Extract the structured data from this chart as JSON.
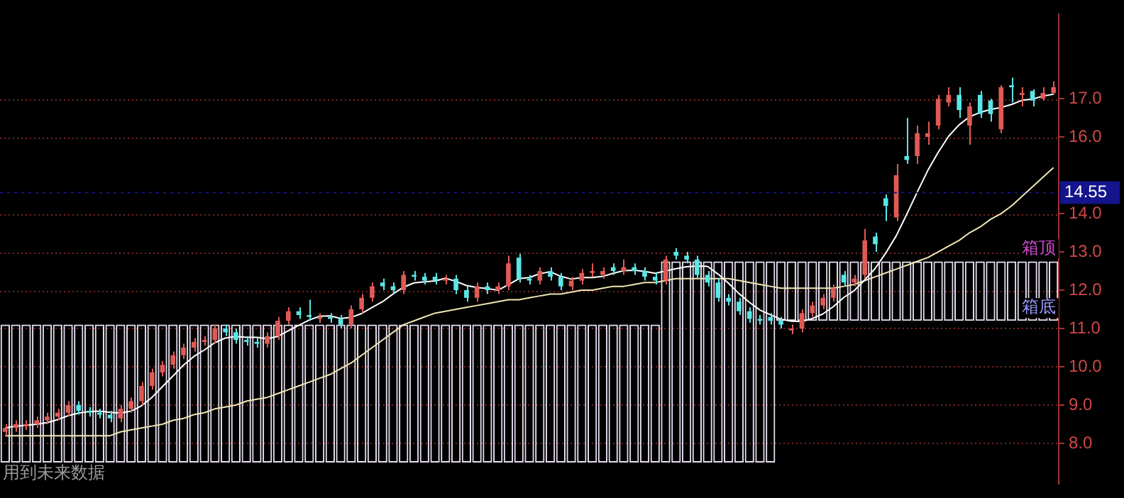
{
  "chart_data": {
    "type": "candlestick",
    "categories": [
      null,
      null,
      null,
      null,
      null,
      null,
      null,
      null,
      null,
      null,
      null,
      null,
      null,
      null,
      null,
      null,
      null,
      null,
      null,
      null,
      null,
      null,
      null,
      null,
      null,
      null,
      null,
      null,
      null,
      null,
      null,
      null,
      null,
      null,
      null,
      null,
      null,
      null,
      null,
      null,
      null,
      null,
      null,
      null,
      null,
      null,
      null,
      null,
      null,
      null,
      null,
      null,
      null,
      null,
      null,
      null,
      null,
      null,
      null,
      null,
      null,
      null,
      null,
      null,
      null,
      null,
      null,
      null,
      null,
      null,
      null,
      null,
      null,
      null,
      null,
      null,
      null,
      null,
      null,
      null,
      null,
      null,
      null,
      null,
      null,
      null,
      null,
      null,
      null,
      null,
      null,
      null,
      null,
      null,
      null,
      null,
      null,
      null,
      null,
      null,
      null
    ],
    "ohlc": [
      [
        8.3,
        8.5,
        8.2,
        8.4
      ],
      [
        8.4,
        8.6,
        8.3,
        8.5
      ],
      [
        8.45,
        8.6,
        8.35,
        8.5
      ],
      [
        8.5,
        8.7,
        8.4,
        8.6
      ],
      [
        8.6,
        8.8,
        8.5,
        8.7
      ],
      [
        8.7,
        8.9,
        8.6,
        8.8
      ],
      [
        8.8,
        9.1,
        8.7,
        9.0
      ],
      [
        9.0,
        9.1,
        8.75,
        8.85
      ],
      [
        8.85,
        8.95,
        8.7,
        8.8
      ],
      [
        8.8,
        8.9,
        8.65,
        8.75
      ],
      [
        8.75,
        8.85,
        8.55,
        8.65
      ],
      [
        8.65,
        9.0,
        8.55,
        8.9
      ],
      [
        8.9,
        9.2,
        8.8,
        9.1
      ],
      [
        9.1,
        9.6,
        9.0,
        9.5
      ],
      [
        9.5,
        9.95,
        9.4,
        9.85
      ],
      [
        9.85,
        10.15,
        9.75,
        10.05
      ],
      [
        10.05,
        10.4,
        9.95,
        10.3
      ],
      [
        10.3,
        10.6,
        10.2,
        10.5
      ],
      [
        10.5,
        10.75,
        10.4,
        10.65
      ],
      [
        10.65,
        10.8,
        10.55,
        10.7
      ],
      [
        10.7,
        11.1,
        10.6,
        11.0
      ],
      [
        11.0,
        11.1,
        10.8,
        10.9
      ],
      [
        10.9,
        11.0,
        10.6,
        10.7
      ],
      [
        10.7,
        10.8,
        10.55,
        10.65
      ],
      [
        10.65,
        10.75,
        10.5,
        10.6
      ],
      [
        10.6,
        10.9,
        10.5,
        10.8
      ],
      [
        10.8,
        11.3,
        10.7,
        11.2
      ],
      [
        11.2,
        11.55,
        11.1,
        11.45
      ],
      [
        11.45,
        11.55,
        11.25,
        11.35
      ],
      [
        11.35,
        11.75,
        11.2,
        11.3
      ],
      [
        11.25,
        11.4,
        11.15,
        11.3
      ],
      [
        11.3,
        11.4,
        11.15,
        11.25
      ],
      [
        11.25,
        11.35,
        11.0,
        11.1
      ],
      [
        11.1,
        11.6,
        11.0,
        11.5
      ],
      [
        11.5,
        11.9,
        11.4,
        11.8
      ],
      [
        11.8,
        12.2,
        11.7,
        12.1
      ],
      [
        12.2,
        12.3,
        12.0,
        12.1
      ],
      [
        12.1,
        12.2,
        11.9,
        12.0
      ],
      [
        12.0,
        12.5,
        11.9,
        12.4
      ],
      [
        12.4,
        12.5,
        12.25,
        12.35
      ],
      [
        12.35,
        12.45,
        12.15,
        12.25
      ],
      [
        12.35,
        12.45,
        12.15,
        12.25
      ],
      [
        12.25,
        12.4,
        12.15,
        12.3
      ],
      [
        12.3,
        12.4,
        11.9,
        12.0
      ],
      [
        12.0,
        12.1,
        11.7,
        11.8
      ],
      [
        11.8,
        12.2,
        11.7,
        12.1
      ],
      [
        12.1,
        12.2,
        11.9,
        12.0
      ],
      [
        12.0,
        12.2,
        11.9,
        12.1
      ],
      [
        12.1,
        12.9,
        12.0,
        12.7
      ],
      [
        12.85,
        12.95,
        12.2,
        12.3
      ],
      [
        12.3,
        12.4,
        12.15,
        12.25
      ],
      [
        12.25,
        12.6,
        12.15,
        12.5
      ],
      [
        12.5,
        12.6,
        12.25,
        12.35
      ],
      [
        12.35,
        12.45,
        12.0,
        12.1
      ],
      [
        12.1,
        12.35,
        12.0,
        12.25
      ],
      [
        12.25,
        12.55,
        12.15,
        12.45
      ],
      [
        12.45,
        12.7,
        12.35,
        12.5
      ],
      [
        12.4,
        12.6,
        12.3,
        12.5
      ],
      [
        12.6,
        12.7,
        12.4,
        12.5
      ],
      [
        12.5,
        12.8,
        12.4,
        12.6
      ],
      [
        12.6,
        12.7,
        12.4,
        12.5
      ],
      [
        12.5,
        12.6,
        12.25,
        12.35
      ],
      [
        12.35,
        12.45,
        12.15,
        12.25
      ],
      [
        12.25,
        12.9,
        12.15,
        12.8
      ],
      [
        13.0,
        13.1,
        12.8,
        12.9
      ],
      [
        12.9,
        13.0,
        12.7,
        12.8
      ],
      [
        12.8,
        12.9,
        12.3,
        12.4
      ],
      [
        12.4,
        12.5,
        12.1,
        12.2
      ],
      [
        12.2,
        12.3,
        11.7,
        11.8
      ],
      [
        11.8,
        11.9,
        11.6,
        11.7
      ],
      [
        11.7,
        11.8,
        11.35,
        11.45
      ],
      [
        11.45,
        11.55,
        11.15,
        11.25
      ],
      [
        11.25,
        11.35,
        11.1,
        11.2
      ],
      [
        11.3,
        11.4,
        11.1,
        11.2
      ],
      [
        11.2,
        11.3,
        11.0,
        11.1
      ],
      [
        10.95,
        11.1,
        10.85,
        11.0
      ],
      [
        11.0,
        11.5,
        10.9,
        11.4
      ],
      [
        11.4,
        11.7,
        11.3,
        11.6
      ],
      [
        11.6,
        11.9,
        11.5,
        11.8
      ],
      [
        11.8,
        12.15,
        11.7,
        12.05
      ],
      [
        12.4,
        12.5,
        12.1,
        12.2
      ],
      [
        12.2,
        12.4,
        12.1,
        12.3
      ],
      [
        12.4,
        13.6,
        12.3,
        13.3
      ],
      [
        13.4,
        13.5,
        13.0,
        13.2
      ],
      [
        14.4,
        14.5,
        13.8,
        14.2
      ],
      [
        13.9,
        15.3,
        13.8,
        15.0
      ],
      [
        15.5,
        16.5,
        15.3,
        15.4
      ],
      [
        15.5,
        16.3,
        15.3,
        16.1
      ],
      [
        16.0,
        16.4,
        15.8,
        16.1
      ],
      [
        16.3,
        17.1,
        16.2,
        17.0
      ],
      [
        16.9,
        17.3,
        16.8,
        17.1
      ],
      [
        17.1,
        17.3,
        16.5,
        16.7
      ],
      [
        16.3,
        16.9,
        15.8,
        16.8
      ],
      [
        17.1,
        17.2,
        16.5,
        16.6
      ],
      [
        16.95,
        17.0,
        16.4,
        16.6
      ],
      [
        16.2,
        17.35,
        16.1,
        17.3
      ],
      [
        17.35,
        17.55,
        16.9,
        17.3
      ],
      [
        17.1,
        17.3,
        16.8,
        17.15
      ],
      [
        17.2,
        17.25,
        16.8,
        16.95
      ],
      [
        17.0,
        17.3,
        16.95,
        17.15
      ],
      [
        17.15,
        17.45,
        17.1,
        17.3
      ]
    ],
    "colors": [
      "#e05a55",
      "#e05a55",
      "#e05a55",
      "#e05a55",
      "#e05a55",
      "#e05a55",
      "#e05a55",
      "#5ae6e6",
      "#5ae6e6",
      "#5ae6e6",
      "#5ae6e6",
      "#e05a55",
      "#e05a55",
      "#e05a55",
      "#e05a55",
      "#e05a55",
      "#e05a55",
      "#e05a55",
      "#e05a55",
      "#e05a55",
      "#e05a55",
      "#5ae6e6",
      "#5ae6e6",
      "#5ae6e6",
      "#5ae6e6",
      "#e05a55",
      "#e05a55",
      "#e05a55",
      "#5ae6e6",
      "#5ae6e6",
      "#e05a55",
      "#5ae6e6",
      "#5ae6e6",
      "#e05a55",
      "#e05a55",
      "#e05a55",
      "#5ae6e6",
      "#5ae6e6",
      "#e05a55",
      "#5ae6e6",
      "#5ae6e6",
      "#5ae6e6",
      "#e05a55",
      "#5ae6e6",
      "#5ae6e6",
      "#e05a55",
      "#5ae6e6",
      "#e05a55",
      "#e05a55",
      "#5ae6e6",
      "#5ae6e6",
      "#e05a55",
      "#5ae6e6",
      "#5ae6e6",
      "#e05a55",
      "#e05a55",
      "#e05a55",
      "#e05a55",
      "#5ae6e6",
      "#e05a55",
      "#5ae6e6",
      "#5ae6e6",
      "#5ae6e6",
      "#e05a55",
      "#5ae6e6",
      "#5ae6e6",
      "#5ae6e6",
      "#5ae6e6",
      "#5ae6e6",
      "#5ae6e6",
      "#5ae6e6",
      "#5ae6e6",
      "#5ae6e6",
      "#5ae6e6",
      "#5ae6e6",
      "#e05a55",
      "#e05a55",
      "#e05a55",
      "#e05a55",
      "#e05a55",
      "#5ae6e6",
      "#e05a55",
      "#e05a55",
      "#5ae6e6",
      "#5ae6e6",
      "#e05a55",
      "#5ae6e6",
      "#e05a55",
      "#e05a55",
      "#e05a55",
      "#e05a55",
      "#5ae6e6",
      "#e05a55",
      "#5ae6e6",
      "#5ae6e6",
      "#e05a55",
      "#5ae6e6",
      "#e05a55",
      "#5ae6e6",
      "#e05a55",
      "#e05a55"
    ],
    "series": [
      {
        "type": "line",
        "color": "#ffffff",
        "values": [
          8.4,
          8.45,
          8.47,
          8.5,
          8.54,
          8.62,
          8.72,
          8.79,
          8.83,
          8.84,
          8.81,
          8.79,
          8.84,
          8.98,
          9.2,
          9.48,
          9.76,
          10.04,
          10.27,
          10.44,
          10.63,
          10.75,
          10.79,
          10.77,
          10.77,
          10.73,
          10.79,
          10.94,
          11.08,
          11.22,
          11.32,
          11.33,
          11.26,
          11.29,
          11.39,
          11.55,
          11.7,
          11.9,
          12.08,
          12.19,
          12.22,
          12.24,
          12.31,
          12.23,
          12.12,
          12.07,
          12.04,
          12.0,
          12.14,
          12.3,
          12.33,
          12.43,
          12.48,
          12.36,
          12.29,
          12.33,
          12.33,
          12.36,
          12.44,
          12.51,
          12.52,
          12.49,
          12.44,
          12.5,
          12.56,
          12.61,
          12.63,
          12.62,
          12.42,
          12.18,
          11.91,
          11.68,
          11.48,
          11.36,
          11.24,
          11.19,
          11.18,
          11.26,
          11.38,
          11.57,
          11.81,
          11.99,
          12.27,
          12.57,
          12.97,
          13.42,
          13.98,
          14.56,
          15.12,
          15.6,
          16.02,
          16.32,
          16.53,
          16.64,
          16.72,
          16.77,
          16.85,
          16.96,
          16.99,
          17.07,
          17.12
        ]
      },
      {
        "type": "line",
        "color": "#f0e6b4",
        "values": [
          8.2,
          8.2,
          8.2,
          8.2,
          8.2,
          8.2,
          8.2,
          8.2,
          8.2,
          8.2,
          8.2,
          8.3,
          8.35,
          8.4,
          8.45,
          8.5,
          8.6,
          8.65,
          8.75,
          8.8,
          8.9,
          8.95,
          9.0,
          9.1,
          9.15,
          9.2,
          9.3,
          9.4,
          9.5,
          9.6,
          9.7,
          9.8,
          9.95,
          10.1,
          10.3,
          10.5,
          10.7,
          10.9,
          11.1,
          11.2,
          11.3,
          11.4,
          11.45,
          11.5,
          11.55,
          11.6,
          11.65,
          11.7,
          11.75,
          11.75,
          11.8,
          11.85,
          11.9,
          11.9,
          11.95,
          12.0,
          12.0,
          12.05,
          12.1,
          12.1,
          12.15,
          12.2,
          12.2,
          12.25,
          12.3,
          12.3,
          12.3,
          12.3,
          12.3,
          12.3,
          12.25,
          12.2,
          12.15,
          12.1,
          12.05,
          12.05,
          12.05,
          12.05,
          12.05,
          12.05,
          12.1,
          12.15,
          12.25,
          12.35,
          12.45,
          12.55,
          12.65,
          12.75,
          12.85,
          13.0,
          13.15,
          13.3,
          13.5,
          13.65,
          13.85,
          14.0,
          14.2,
          14.45,
          14.7,
          14.95,
          15.2
        ]
      },
      {
        "type": "bar",
        "color": "#e6def0",
        "base": [
          7.5,
          7.5,
          7.5,
          7.5,
          7.5,
          7.5,
          7.5,
          7.5,
          7.5,
          7.5,
          7.5,
          7.5,
          7.5,
          7.5,
          7.5,
          7.5,
          7.5,
          7.5,
          7.5,
          7.5,
          7.5,
          7.5,
          7.5,
          7.5,
          7.5,
          7.5,
          7.5,
          7.5,
          7.5,
          7.5,
          7.5,
          7.5,
          7.5,
          7.5,
          7.5,
          7.5,
          7.5,
          7.5,
          7.5,
          7.5,
          7.5,
          7.5,
          7.5,
          7.5,
          7.5,
          7.5,
          7.5,
          7.5,
          7.5,
          7.5,
          7.5,
          7.5,
          7.5,
          7.5,
          7.5,
          7.5,
          7.5,
          7.5,
          7.5,
          7.5,
          7.5,
          7.5,
          7.5,
          7.5,
          7.5,
          7.5,
          7.5,
          7.5,
          7.5,
          7.5,
          7.5,
          7.5,
          7.5,
          7.5,
          11.2,
          11.2,
          11.2,
          11.2,
          11.2,
          11.2,
          11.2,
          11.2,
          11.2,
          11.2,
          11.2,
          11.2,
          11.2,
          11.2,
          11.2,
          11.2,
          11.2,
          11.2,
          11.2,
          11.2,
          11.2,
          11.2,
          11.2,
          11.2,
          11.2,
          11.2,
          11.2
        ],
        "values": [
          3.6,
          3.6,
          3.6,
          3.6,
          3.6,
          3.6,
          3.6,
          3.6,
          3.6,
          3.6,
          3.6,
          3.6,
          3.6,
          3.6,
          3.6,
          3.6,
          3.6,
          3.6,
          3.6,
          3.6,
          3.6,
          3.6,
          3.6,
          3.6,
          3.6,
          3.6,
          3.6,
          3.6,
          3.6,
          3.6,
          3.6,
          3.6,
          3.6,
          3.6,
          3.6,
          3.6,
          3.6,
          3.6,
          3.6,
          3.6,
          3.6,
          3.6,
          3.6,
          3.6,
          3.6,
          3.6,
          3.6,
          3.6,
          3.6,
          3.6,
          3.6,
          3.6,
          3.6,
          3.6,
          3.6,
          3.6,
          3.6,
          3.6,
          3.6,
          3.6,
          3.6,
          3.6,
          3.6,
          5.25,
          5.25,
          5.25,
          5.25,
          5.25,
          5.25,
          5.25,
          5.25,
          5.25,
          5.25,
          5.25,
          1.55,
          1.55,
          1.55,
          1.55,
          1.55,
          1.55,
          1.55,
          1.55,
          1.55,
          1.55,
          1.55,
          1.55,
          1.55,
          1.55,
          1.55,
          1.55,
          1.55,
          1.55,
          1.55,
          1.55,
          1.55,
          1.55,
          1.55,
          1.55,
          1.55,
          1.55,
          1.55
        ]
      }
    ],
    "ylim": [
      6.95,
      19.2
    ],
    "yticks": [
      {
        "value": 8,
        "label": "8.0"
      },
      {
        "value": 9,
        "label": "9.0"
      },
      {
        "value": 10,
        "label": "10.0"
      },
      {
        "value": 11,
        "label": "11.0"
      },
      {
        "value": 12,
        "label": "12.0"
      },
      {
        "value": 13,
        "label": "13.0"
      },
      {
        "value": 14,
        "label": "14.0"
      },
      {
        "value": 16,
        "label": "16.0"
      },
      {
        "value": 17,
        "label": "17.0"
      }
    ],
    "grid": "y",
    "tick_labels": "y",
    "ref_lines": [
      {
        "axis": "y",
        "value": 14.55,
        "label": "14.55",
        "color": "#14148c"
      }
    ],
    "annotations": [
      {
        "text": "箱顶",
        "y": 12.75
      },
      {
        "text": "箱底",
        "y": 11.2
      },
      "用到未来数据"
    ]
  }
}
